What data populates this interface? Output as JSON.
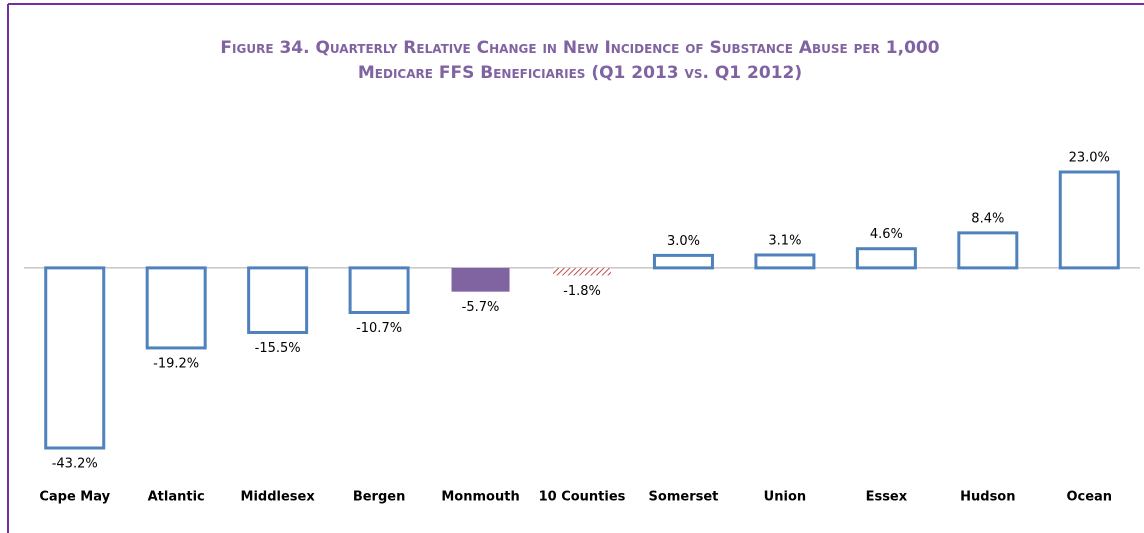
{
  "chart_data": {
    "type": "bar",
    "title": "Figure 34. Quarterly Relative Change in New Incidence of Substance Abuse per 1,000 Medicare FFS Beneficiaries (Q1 2013 vs. Q1 2012)",
    "categories": [
      "Cape May",
      "Atlantic",
      "Middlesex",
      "Bergen",
      "Monmouth",
      "10 Counties",
      "Somerset",
      "Union",
      "Essex",
      "Hudson",
      "Ocean"
    ],
    "values": [
      -43.2,
      -19.2,
      -15.5,
      -10.7,
      -5.7,
      -1.8,
      3.0,
      3.1,
      4.6,
      8.4,
      23.0
    ],
    "value_labels": [
      "-43.2%",
      "-19.2%",
      "-15.5%",
      "-10.7%",
      "-5.7%",
      "-1.8%",
      "3.0%",
      "3.1%",
      "4.6%",
      "8.4%",
      "23.0%"
    ],
    "colors": [
      "#4f81bd",
      "#4f81bd",
      "#4f81bd",
      "#4f81bd",
      "#8064a2",
      "#c0504d",
      "#4f81bd",
      "#4f81bd",
      "#4f81bd",
      "#4f81bd",
      "#4f81bd"
    ],
    "fill_styles": [
      "outline",
      "outline",
      "outline",
      "outline",
      "solid",
      "hatch",
      "outline",
      "outline",
      "outline",
      "outline",
      "outline"
    ]
  }
}
